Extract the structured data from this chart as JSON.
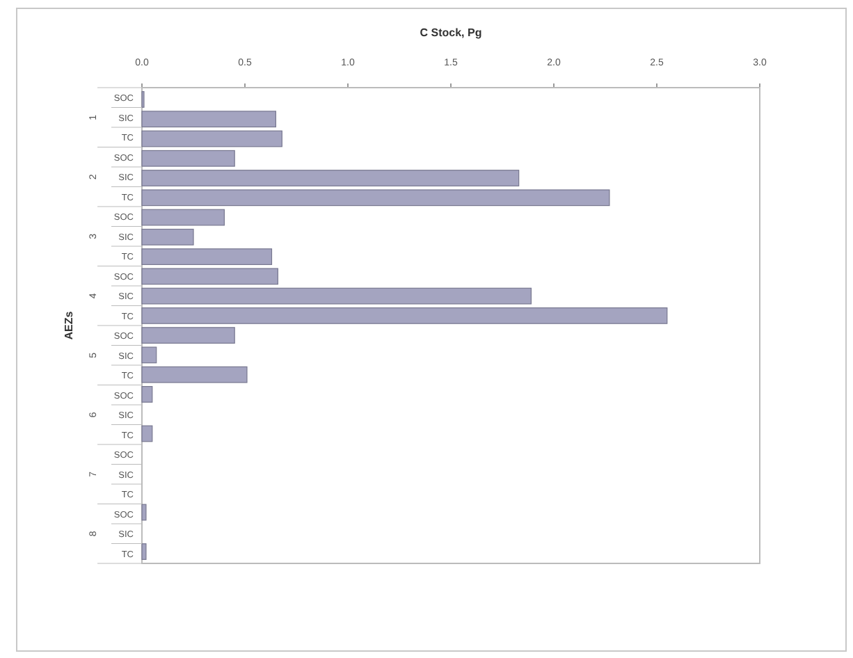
{
  "chart_data": {
    "type": "bar",
    "orientation": "horizontal",
    "title": "C Stock, Pg",
    "ylabel": "AEZs",
    "categories": [
      "SOC",
      "SIC",
      "TC",
      "SOC",
      "SIC",
      "TC",
      "SOC",
      "SIC",
      "TC",
      "SOC",
      "SIC",
      "TC",
      "SOC",
      "SIC",
      "TC",
      "SOC",
      "SIC",
      "TC",
      "SOC",
      "SIC",
      "TC",
      "SOC",
      "SIC",
      "TC"
    ],
    "values": [
      0.01,
      0.65,
      0.68,
      0.45,
      1.83,
      2.27,
      0.4,
      0.25,
      0.63,
      0.66,
      1.89,
      2.55,
      0.45,
      0.07,
      0.51,
      0.05,
      0,
      0.05,
      0,
      0,
      0,
      0.02,
      0,
      0.02
    ],
    "color": "#a4a4c0",
    "annotations": [
      "1",
      "2",
      "3",
      "4",
      "5",
      "6",
      "7",
      "8"
    ],
    "xlim": [
      0,
      3
    ],
    "xticks": [
      {
        "value": 0,
        "label": "0.0"
      },
      {
        "value": 0.5,
        "label": "0.5"
      },
      {
        "value": 1,
        "label": "1.0"
      },
      {
        "value": 1.5,
        "label": "1.5"
      },
      {
        "value": 2,
        "label": "2.0"
      },
      {
        "value": 2.5,
        "label": "2.5"
      },
      {
        "value": 3,
        "label": "3.0"
      }
    ],
    "grid": false
  }
}
